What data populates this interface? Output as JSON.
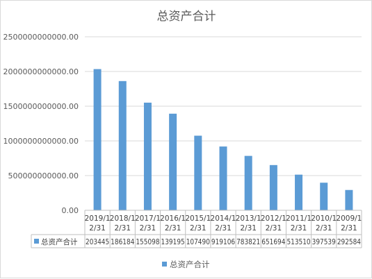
{
  "chart_data": {
    "type": "bar",
    "title": "总资产合计",
    "categories": [
      [
        "2019/1",
        "2/31"
      ],
      [
        "2018/1",
        "2/31"
      ],
      [
        "2017/1",
        "2/31"
      ],
      [
        "2016/1",
        "2/31"
      ],
      [
        "2015/1",
        "2/31"
      ],
      [
        "2014/1",
        "2/31"
      ],
      [
        "2013/1",
        "2/31"
      ],
      [
        "2012/1",
        "2/31"
      ],
      [
        "2011/1",
        "2/31"
      ],
      [
        "2010/1",
        "2/31"
      ],
      [
        "2009/1",
        "2/31"
      ]
    ],
    "series": [
      {
        "name": "总资产合计",
        "color": "#5b9bd5",
        "values": [
          2034450000000,
          1861840000000,
          1550980000000,
          1391950000000,
          1074900000000,
          919106000000,
          783821000000,
          651694000000,
          513510000000,
          397539000000,
          292584000000
        ],
        "table_labels": [
          "203445",
          "186184",
          "155098",
          "139195",
          "107490",
          "919106",
          "783821",
          "651694",
          "513510",
          "397539",
          "292584"
        ]
      }
    ],
    "yticks": [
      "0.00",
      "500000000000.00",
      "1000000000000.00",
      "1500000000000.00",
      "2000000000000.00",
      "2500000000000.00"
    ],
    "ylim": [
      0,
      2500000000000
    ],
    "grid": true,
    "legend": {
      "position": "bottom",
      "label": "总资产合计"
    }
  }
}
